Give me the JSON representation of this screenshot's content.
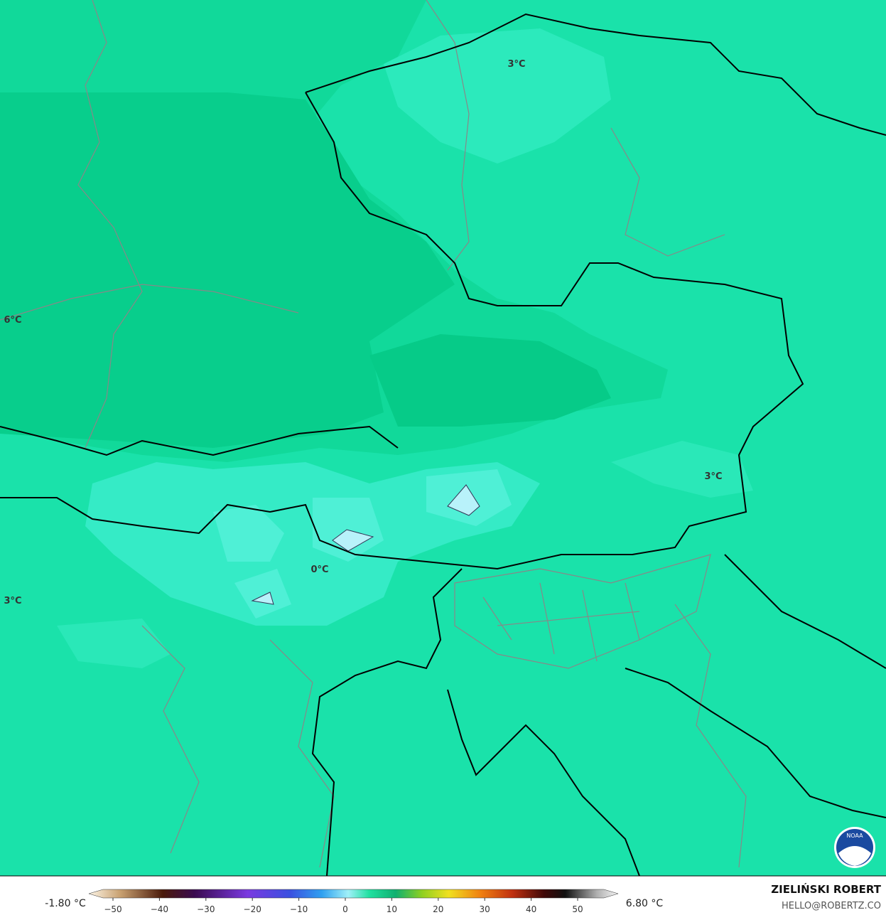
{
  "map": {
    "contour_labels": [
      "3°C",
      "6°C",
      "3°C",
      "0°C",
      "3°C"
    ]
  },
  "colorbar": {
    "min_label": "-1.80 °C",
    "max_label": "6.80 °C",
    "ticks": [
      "−50",
      "−40",
      "−30",
      "−20",
      "−10",
      "0",
      "10",
      "20",
      "30",
      "40",
      "50"
    ]
  },
  "credits": {
    "author": "ZIELIŃSKI ROBERT",
    "email": "HELLO@ROBERTZ.CO",
    "logo": "NOAA"
  }
}
